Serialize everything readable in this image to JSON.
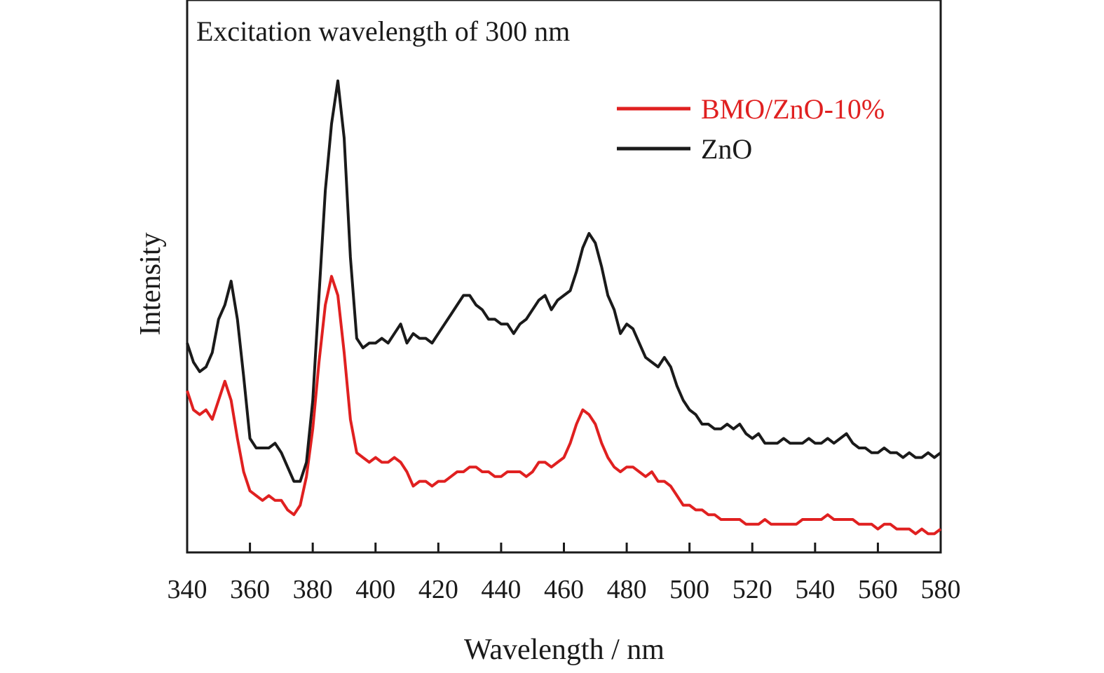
{
  "chart_data": {
    "type": "line",
    "annotation": "Excitation wavelength of 300 nm",
    "xlabel": "Wavelength / nm",
    "ylabel": "Intensity",
    "xlim": [
      340,
      580
    ],
    "ylim": [
      0,
      100
    ],
    "xticks": [
      340,
      360,
      380,
      400,
      420,
      440,
      460,
      480,
      500,
      520,
      540,
      560,
      580
    ],
    "y_tick_labels": false,
    "grid": false,
    "legend_position": "top-right",
    "series": [
      {
        "name": "BMO/ZnO-10%",
        "color": "#e02020",
        "points": [
          [
            340,
            32
          ],
          [
            342,
            28
          ],
          [
            344,
            27
          ],
          [
            346,
            28
          ],
          [
            348,
            26
          ],
          [
            350,
            30
          ],
          [
            352,
            34
          ],
          [
            354,
            30
          ],
          [
            356,
            22
          ],
          [
            358,
            15
          ],
          [
            360,
            11
          ],
          [
            362,
            10
          ],
          [
            364,
            9
          ],
          [
            366,
            10
          ],
          [
            368,
            9
          ],
          [
            370,
            9
          ],
          [
            372,
            7
          ],
          [
            374,
            6
          ],
          [
            376,
            8
          ],
          [
            378,
            14
          ],
          [
            380,
            24
          ],
          [
            382,
            38
          ],
          [
            384,
            50
          ],
          [
            386,
            56
          ],
          [
            388,
            52
          ],
          [
            390,
            40
          ],
          [
            392,
            26
          ],
          [
            394,
            19
          ],
          [
            396,
            18
          ],
          [
            398,
            17
          ],
          [
            400,
            18
          ],
          [
            402,
            17
          ],
          [
            404,
            17
          ],
          [
            406,
            18
          ],
          [
            408,
            17
          ],
          [
            410,
            15
          ],
          [
            412,
            12
          ],
          [
            414,
            13
          ],
          [
            416,
            13
          ],
          [
            418,
            12
          ],
          [
            420,
            13
          ],
          [
            422,
            13
          ],
          [
            424,
            14
          ],
          [
            426,
            15
          ],
          [
            428,
            15
          ],
          [
            430,
            16
          ],
          [
            432,
            16
          ],
          [
            434,
            15
          ],
          [
            436,
            15
          ],
          [
            438,
            14
          ],
          [
            440,
            14
          ],
          [
            442,
            15
          ],
          [
            444,
            15
          ],
          [
            446,
            15
          ],
          [
            448,
            14
          ],
          [
            450,
            15
          ],
          [
            452,
            17
          ],
          [
            454,
            17
          ],
          [
            456,
            16
          ],
          [
            458,
            17
          ],
          [
            460,
            18
          ],
          [
            462,
            21
          ],
          [
            464,
            25
          ],
          [
            466,
            28
          ],
          [
            468,
            27
          ],
          [
            470,
            25
          ],
          [
            472,
            21
          ],
          [
            474,
            18
          ],
          [
            476,
            16
          ],
          [
            478,
            15
          ],
          [
            480,
            16
          ],
          [
            482,
            16
          ],
          [
            484,
            15
          ],
          [
            486,
            14
          ],
          [
            488,
            15
          ],
          [
            490,
            13
          ],
          [
            492,
            13
          ],
          [
            494,
            12
          ],
          [
            496,
            10
          ],
          [
            498,
            8
          ],
          [
            500,
            8
          ],
          [
            502,
            7
          ],
          [
            504,
            7
          ],
          [
            506,
            6
          ],
          [
            508,
            6
          ],
          [
            510,
            5
          ],
          [
            512,
            5
          ],
          [
            514,
            5
          ],
          [
            516,
            5
          ],
          [
            518,
            4
          ],
          [
            520,
            4
          ],
          [
            522,
            4
          ],
          [
            524,
            5
          ],
          [
            526,
            4
          ],
          [
            528,
            4
          ],
          [
            530,
            4
          ],
          [
            532,
            4
          ],
          [
            534,
            4
          ],
          [
            536,
            5
          ],
          [
            538,
            5
          ],
          [
            540,
            5
          ],
          [
            542,
            5
          ],
          [
            544,
            6
          ],
          [
            546,
            5
          ],
          [
            548,
            5
          ],
          [
            550,
            5
          ],
          [
            552,
            5
          ],
          [
            554,
            4
          ],
          [
            556,
            4
          ],
          [
            558,
            4
          ],
          [
            560,
            3
          ],
          [
            562,
            4
          ],
          [
            564,
            4
          ],
          [
            566,
            3
          ],
          [
            568,
            3
          ],
          [
            570,
            3
          ],
          [
            572,
            2
          ],
          [
            574,
            3
          ],
          [
            576,
            2
          ],
          [
            578,
            2
          ],
          [
            580,
            3
          ]
        ]
      },
      {
        "name": "ZnO",
        "color": "#1a1a1a",
        "points": [
          [
            340,
            42
          ],
          [
            342,
            38
          ],
          [
            344,
            36
          ],
          [
            346,
            37
          ],
          [
            348,
            40
          ],
          [
            350,
            47
          ],
          [
            352,
            50
          ],
          [
            354,
            55
          ],
          [
            356,
            47
          ],
          [
            358,
            35
          ],
          [
            360,
            22
          ],
          [
            362,
            20
          ],
          [
            364,
            20
          ],
          [
            366,
            20
          ],
          [
            368,
            21
          ],
          [
            370,
            19
          ],
          [
            372,
            16
          ],
          [
            374,
            13
          ],
          [
            376,
            13
          ],
          [
            378,
            17
          ],
          [
            380,
            30
          ],
          [
            382,
            52
          ],
          [
            384,
            74
          ],
          [
            386,
            88
          ],
          [
            388,
            97
          ],
          [
            390,
            85
          ],
          [
            392,
            60
          ],
          [
            394,
            43
          ],
          [
            396,
            41
          ],
          [
            398,
            42
          ],
          [
            400,
            42
          ],
          [
            402,
            43
          ],
          [
            404,
            42
          ],
          [
            406,
            44
          ],
          [
            408,
            46
          ],
          [
            410,
            42
          ],
          [
            412,
            44
          ],
          [
            414,
            43
          ],
          [
            416,
            43
          ],
          [
            418,
            42
          ],
          [
            420,
            44
          ],
          [
            422,
            46
          ],
          [
            424,
            48
          ],
          [
            426,
            50
          ],
          [
            428,
            52
          ],
          [
            430,
            52
          ],
          [
            432,
            50
          ],
          [
            434,
            49
          ],
          [
            436,
            47
          ],
          [
            438,
            47
          ],
          [
            440,
            46
          ],
          [
            442,
            46
          ],
          [
            444,
            44
          ],
          [
            446,
            46
          ],
          [
            448,
            47
          ],
          [
            450,
            49
          ],
          [
            452,
            51
          ],
          [
            454,
            52
          ],
          [
            456,
            49
          ],
          [
            458,
            51
          ],
          [
            460,
            52
          ],
          [
            462,
            53
          ],
          [
            464,
            57
          ],
          [
            466,
            62
          ],
          [
            468,
            65
          ],
          [
            470,
            63
          ],
          [
            472,
            58
          ],
          [
            474,
            52
          ],
          [
            476,
            49
          ],
          [
            478,
            44
          ],
          [
            480,
            46
          ],
          [
            482,
            45
          ],
          [
            484,
            42
          ],
          [
            486,
            39
          ],
          [
            488,
            38
          ],
          [
            490,
            37
          ],
          [
            492,
            39
          ],
          [
            494,
            37
          ],
          [
            496,
            33
          ],
          [
            498,
            30
          ],
          [
            500,
            28
          ],
          [
            502,
            27
          ],
          [
            504,
            25
          ],
          [
            506,
            25
          ],
          [
            508,
            24
          ],
          [
            510,
            24
          ],
          [
            512,
            25
          ],
          [
            514,
            24
          ],
          [
            516,
            25
          ],
          [
            518,
            23
          ],
          [
            520,
            22
          ],
          [
            522,
            23
          ],
          [
            524,
            21
          ],
          [
            526,
            21
          ],
          [
            528,
            21
          ],
          [
            530,
            22
          ],
          [
            532,
            21
          ],
          [
            534,
            21
          ],
          [
            536,
            21
          ],
          [
            538,
            22
          ],
          [
            540,
            21
          ],
          [
            542,
            21
          ],
          [
            544,
            22
          ],
          [
            546,
            21
          ],
          [
            548,
            22
          ],
          [
            550,
            23
          ],
          [
            552,
            21
          ],
          [
            554,
            20
          ],
          [
            556,
            20
          ],
          [
            558,
            19
          ],
          [
            560,
            19
          ],
          [
            562,
            20
          ],
          [
            564,
            19
          ],
          [
            566,
            19
          ],
          [
            568,
            18
          ],
          [
            570,
            19
          ],
          [
            572,
            18
          ],
          [
            574,
            18
          ],
          [
            576,
            19
          ],
          [
            578,
            18
          ],
          [
            580,
            19
          ]
        ]
      }
    ]
  }
}
